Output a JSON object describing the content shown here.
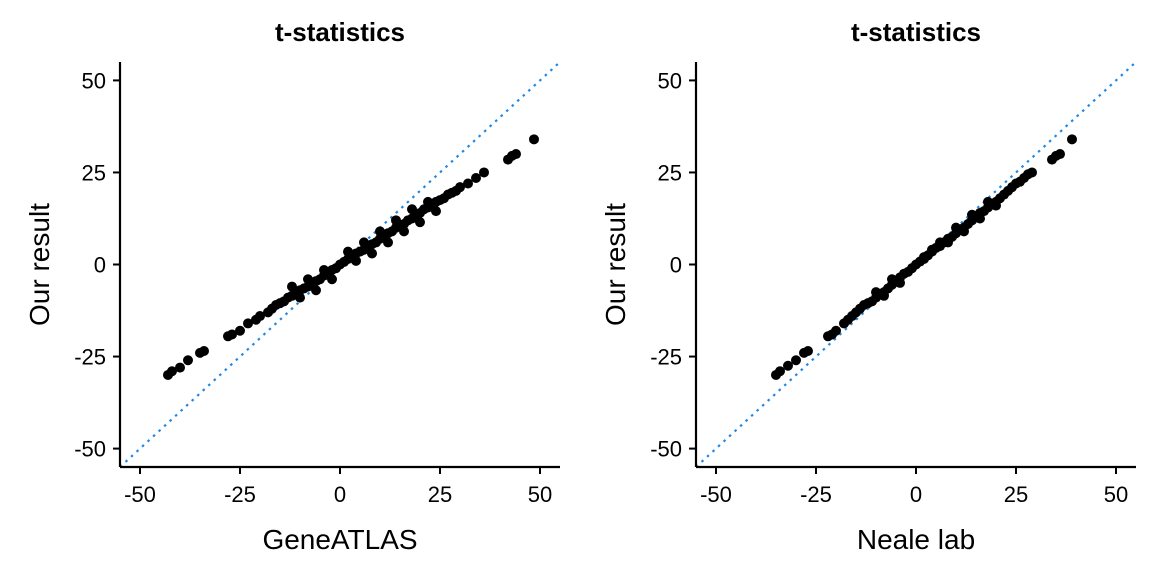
{
  "chart_data": [
    {
      "type": "scatter",
      "title": "t-statistics",
      "xlabel": "GeneATLAS",
      "ylabel": "Our result",
      "xlim": [
        -55,
        55
      ],
      "ylim": [
        -55,
        55
      ],
      "xticks": [
        -50,
        -25,
        0,
        25,
        50
      ],
      "yticks": [
        -50,
        -25,
        0,
        25,
        50
      ],
      "xtick_labels": [
        "-50",
        "-25",
        "0",
        "25",
        "50"
      ],
      "ytick_labels": [
        "-50",
        "-25",
        "0",
        "25",
        "50"
      ],
      "grid": false,
      "reference_line": {
        "style": "dotted",
        "slope": 1,
        "intercept": 0,
        "color": "#1e88e5"
      },
      "point_color": "#000000",
      "points": [
        [
          -43,
          -30
        ],
        [
          -42,
          -29
        ],
        [
          -40,
          -28
        ],
        [
          -38,
          -26
        ],
        [
          -35,
          -24
        ],
        [
          -34,
          -23.5
        ],
        [
          -28,
          -19.5
        ],
        [
          -27,
          -19
        ],
        [
          -25,
          -18
        ],
        [
          -23,
          -16
        ],
        [
          -21,
          -15
        ],
        [
          -20,
          -14
        ],
        [
          -18,
          -13
        ],
        [
          -17,
          -12
        ],
        [
          -16,
          -11
        ],
        [
          -15,
          -10.5
        ],
        [
          -14,
          -10
        ],
        [
          -13,
          -9
        ],
        [
          -12,
          -8.5
        ],
        [
          -11,
          -8
        ],
        [
          -10,
          -7
        ],
        [
          -9,
          -6.5
        ],
        [
          -8,
          -6
        ],
        [
          -7,
          -5
        ],
        [
          -6,
          -4.5
        ],
        [
          -5,
          -4
        ],
        [
          -4,
          -3
        ],
        [
          -3,
          -2.5
        ],
        [
          -2,
          -1.5
        ],
        [
          -1,
          -1
        ],
        [
          0,
          0
        ],
        [
          1,
          0.7
        ],
        [
          2,
          1.5
        ],
        [
          3,
          2
        ],
        [
          4,
          3
        ],
        [
          5,
          3.5
        ],
        [
          6,
          4
        ],
        [
          7,
          5
        ],
        [
          8,
          5.5
        ],
        [
          9,
          6
        ],
        [
          10,
          7
        ],
        [
          11,
          7.5
        ],
        [
          12,
          8.5
        ],
        [
          13,
          9
        ],
        [
          14,
          10
        ],
        [
          15,
          10.5
        ],
        [
          16,
          11
        ],
        [
          17,
          12
        ],
        [
          18,
          12.5
        ],
        [
          19,
          13
        ],
        [
          20,
          14
        ],
        [
          21,
          15
        ],
        [
          22,
          15.5
        ],
        [
          23,
          16
        ],
        [
          24,
          17
        ],
        [
          25,
          17.5
        ],
        [
          26,
          18
        ],
        [
          27,
          19
        ],
        [
          28,
          19.5
        ],
        [
          29,
          20
        ],
        [
          30,
          21
        ],
        [
          32,
          22
        ],
        [
          34,
          23.5
        ],
        [
          36,
          25
        ],
        [
          42,
          28.5
        ],
        [
          43,
          29.5
        ],
        [
          44,
          30
        ],
        [
          48.5,
          34
        ],
        [
          -12,
          -6
        ],
        [
          -10,
          -9
        ],
        [
          -8,
          -4
        ],
        [
          -6,
          -7
        ],
        [
          -4,
          -1.5
        ],
        [
          -2,
          -4
        ],
        [
          2,
          3.5
        ],
        [
          4,
          1
        ],
        [
          6,
          6
        ],
        [
          8,
          3
        ],
        [
          10,
          9
        ],
        [
          12,
          6
        ],
        [
          14,
          12
        ],
        [
          16,
          9
        ],
        [
          18,
          15
        ],
        [
          20,
          11.5
        ],
        [
          22,
          17
        ],
        [
          24,
          14.5
        ]
      ]
    },
    {
      "type": "scatter",
      "title": "t-statistics",
      "xlabel": "Neale lab",
      "ylabel": "Our result",
      "xlim": [
        -55,
        55
      ],
      "ylim": [
        -55,
        55
      ],
      "xticks": [
        -50,
        -25,
        0,
        25,
        50
      ],
      "yticks": [
        -50,
        -25,
        0,
        25,
        50
      ],
      "xtick_labels": [
        "-50",
        "-25",
        "0",
        "25",
        "50"
      ],
      "ytick_labels": [
        "-50",
        "-25",
        "0",
        "25",
        "50"
      ],
      "grid": false,
      "reference_line": {
        "style": "dotted",
        "slope": 1,
        "intercept": 0,
        "color": "#1e88e5"
      },
      "point_color": "#000000",
      "points": [
        [
          -35,
          -30
        ],
        [
          -34,
          -29
        ],
        [
          -32,
          -27.5
        ],
        [
          -30,
          -26
        ],
        [
          -28,
          -24
        ],
        [
          -27,
          -23.5
        ],
        [
          -22,
          -19.5
        ],
        [
          -21,
          -19
        ],
        [
          -20,
          -18
        ],
        [
          -18,
          -16
        ],
        [
          -17,
          -15
        ],
        [
          -16,
          -14
        ],
        [
          -15,
          -13
        ],
        [
          -14,
          -12
        ],
        [
          -13,
          -11
        ],
        [
          -12,
          -10.5
        ],
        [
          -11,
          -10
        ],
        [
          -10,
          -9
        ],
        [
          -9,
          -8
        ],
        [
          -8,
          -7.5
        ],
        [
          -7,
          -6.5
        ],
        [
          -6,
          -5.5
        ],
        [
          -5,
          -4.5
        ],
        [
          -4,
          -3.5
        ],
        [
          -3,
          -2.5
        ],
        [
          -2,
          -2
        ],
        [
          -1,
          -1
        ],
        [
          0,
          0
        ],
        [
          1,
          0.8
        ],
        [
          2,
          2
        ],
        [
          3,
          2.5
        ],
        [
          4,
          3.5
        ],
        [
          5,
          4.5
        ],
        [
          6,
          5
        ],
        [
          7,
          6
        ],
        [
          8,
          7
        ],
        [
          9,
          7.5
        ],
        [
          10,
          8.5
        ],
        [
          11,
          9.5
        ],
        [
          12,
          10
        ],
        [
          13,
          11
        ],
        [
          14,
          12
        ],
        [
          15,
          13
        ],
        [
          16,
          14
        ],
        [
          17,
          14.5
        ],
        [
          18,
          15.5
        ],
        [
          19,
          16.5
        ],
        [
          20,
          17
        ],
        [
          21,
          18
        ],
        [
          22,
          19
        ],
        [
          23,
          20
        ],
        [
          24,
          21
        ],
        [
          25,
          22
        ],
        [
          26,
          22.5
        ],
        [
          27,
          23.5
        ],
        [
          28,
          24.5
        ],
        [
          29,
          25
        ],
        [
          34,
          28.5
        ],
        [
          35,
          29.5
        ],
        [
          36,
          30
        ],
        [
          39,
          34
        ],
        [
          -10,
          -7.5
        ],
        [
          -8,
          -8.5
        ],
        [
          -6,
          -4
        ],
        [
          -4,
          -5
        ],
        [
          2,
          1.5
        ],
        [
          4,
          4
        ],
        [
          6,
          6
        ],
        [
          8,
          6
        ],
        [
          10,
          10
        ],
        [
          12,
          9
        ],
        [
          14,
          13.5
        ],
        [
          16,
          12.5
        ],
        [
          18,
          17
        ],
        [
          20,
          16
        ]
      ]
    }
  ]
}
